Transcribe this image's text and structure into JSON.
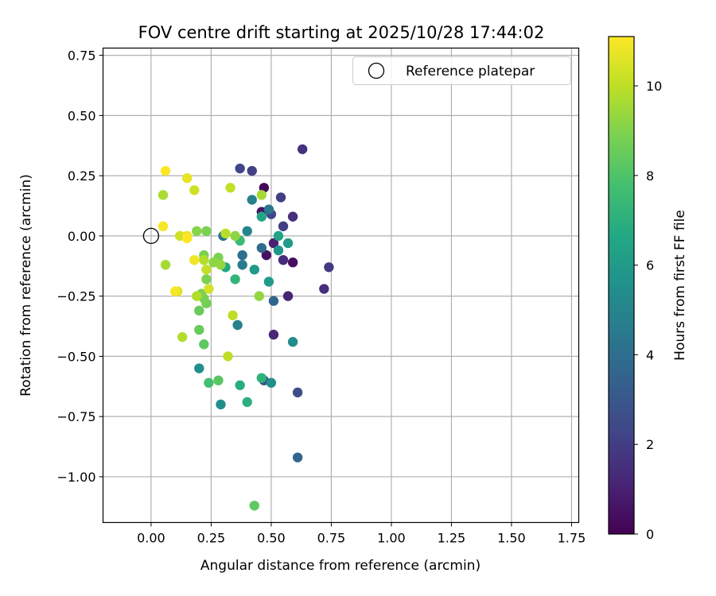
{
  "chart_data": {
    "type": "scatter",
    "title": "FOV centre drift starting at 2025/10/28 17:44:02",
    "xlabel": "Angular distance from reference (arcmin)",
    "ylabel": "Rotation from reference (arcmin)",
    "xlim": [
      -0.2,
      1.78
    ],
    "ylim": [
      -1.19,
      0.78
    ],
    "xticks": [
      0.0,
      0.25,
      0.5,
      0.75,
      1.0,
      1.25,
      1.5,
      1.75
    ],
    "xtick_labels": [
      "0.00",
      "0.25",
      "0.50",
      "0.75",
      "1.00",
      "1.25",
      "1.50",
      "1.75"
    ],
    "yticks": [
      0.75,
      0.5,
      0.25,
      0.0,
      -0.25,
      -0.5,
      -0.75,
      -1.0
    ],
    "ytick_labels": [
      "0.75",
      "0.50",
      "0.25",
      "0.00",
      "−0.25",
      "−0.50",
      "−0.75",
      "−1.00"
    ],
    "grid": true,
    "legend": {
      "position": "top-right",
      "entries": [
        {
          "label": "Reference platepar",
          "marker": "open-circle"
        }
      ]
    },
    "reference_point": {
      "x": 0.0,
      "y": 0.0
    },
    "colorbar": {
      "label": "Hours from first FF file",
      "min": 0,
      "max": 11.1,
      "ticks": [
        0,
        2,
        4,
        6,
        8,
        10
      ],
      "tick_labels": [
        "0",
        "2",
        "4",
        "6",
        "8",
        "10"
      ],
      "colormap": "viridis"
    },
    "points": [
      {
        "x": 0.47,
        "y": 0.2,
        "hours": 0.2
      },
      {
        "x": 0.46,
        "y": 0.1,
        "hours": 0.6
      },
      {
        "x": 0.48,
        "y": -0.08,
        "hours": 0.5
      },
      {
        "x": 0.59,
        "y": -0.11,
        "hours": 0.4
      },
      {
        "x": 0.51,
        "y": -0.03,
        "hours": 1.0
      },
      {
        "x": 0.57,
        "y": -0.25,
        "hours": 1.1
      },
      {
        "x": 0.63,
        "y": 0.36,
        "hours": 1.6
      },
      {
        "x": 0.55,
        "y": -0.1,
        "hours": 1.4
      },
      {
        "x": 0.51,
        "y": -0.41,
        "hours": 1.3
      },
      {
        "x": 0.72,
        "y": -0.22,
        "hours": 1.5
      },
      {
        "x": 0.74,
        "y": -0.13,
        "hours": 1.9
      },
      {
        "x": 0.59,
        "y": 0.08,
        "hours": 1.5
      },
      {
        "x": 0.54,
        "y": 0.16,
        "hours": 2.0
      },
      {
        "x": 0.42,
        "y": 0.27,
        "hours": 2.1
      },
      {
        "x": 0.37,
        "y": 0.28,
        "hours": 2.3
      },
      {
        "x": 0.5,
        "y": 0.09,
        "hours": 2.4
      },
      {
        "x": 0.55,
        "y": 0.04,
        "hours": 2.0
      },
      {
        "x": 0.47,
        "y": -0.6,
        "hours": 2.7
      },
      {
        "x": 0.61,
        "y": -0.65,
        "hours": 2.6
      },
      {
        "x": 0.61,
        "y": -0.92,
        "hours": 3.6
      },
      {
        "x": 0.51,
        "y": -0.27,
        "hours": 3.6
      },
      {
        "x": 0.46,
        "y": -0.05,
        "hours": 3.9
      },
      {
        "x": 0.38,
        "y": -0.08,
        "hours": 4.0
      },
      {
        "x": 0.3,
        "y": 0.0,
        "hours": 4.2
      },
      {
        "x": 0.49,
        "y": 0.11,
        "hours": 4.4
      },
      {
        "x": 0.38,
        "y": -0.12,
        "hours": 4.6
      },
      {
        "x": 0.36,
        "y": -0.37,
        "hours": 4.8
      },
      {
        "x": 0.42,
        "y": 0.15,
        "hours": 4.8
      },
      {
        "x": 0.4,
        "y": 0.02,
        "hours": 5.0
      },
      {
        "x": 0.2,
        "y": -0.55,
        "hours": 5.4
      },
      {
        "x": 0.29,
        "y": -0.7,
        "hours": 5.4
      },
      {
        "x": 0.59,
        "y": -0.44,
        "hours": 5.3
      },
      {
        "x": 0.5,
        "y": -0.61,
        "hours": 5.5
      },
      {
        "x": 0.53,
        "y": -0.06,
        "hours": 5.7
      },
      {
        "x": 0.43,
        "y": -0.14,
        "hours": 6.0
      },
      {
        "x": 0.49,
        "y": -0.19,
        "hours": 6.0
      },
      {
        "x": 0.57,
        "y": -0.03,
        "hours": 6.1
      },
      {
        "x": 0.53,
        "y": 0.0,
        "hours": 6.4
      },
      {
        "x": 0.46,
        "y": 0.08,
        "hours": 6.5
      },
      {
        "x": 0.31,
        "y": -0.13,
        "hours": 6.6
      },
      {
        "x": 0.37,
        "y": -0.62,
        "hours": 6.9
      },
      {
        "x": 0.4,
        "y": -0.69,
        "hours": 7.0
      },
      {
        "x": 0.46,
        "y": -0.59,
        "hours": 7.1
      },
      {
        "x": 0.35,
        "y": -0.18,
        "hours": 7.3
      },
      {
        "x": 0.37,
        "y": -0.02,
        "hours": 7.5
      },
      {
        "x": 0.24,
        "y": -0.61,
        "hours": 7.8
      },
      {
        "x": 0.28,
        "y": -0.6,
        "hours": 8.2
      },
      {
        "x": 0.43,
        "y": -1.12,
        "hours": 8.3
      },
      {
        "x": 0.22,
        "y": -0.45,
        "hours": 8.3
      },
      {
        "x": 0.2,
        "y": -0.39,
        "hours": 8.5
      },
      {
        "x": 0.2,
        "y": -0.31,
        "hours": 8.5
      },
      {
        "x": 0.23,
        "y": -0.28,
        "hours": 8.7
      },
      {
        "x": 0.22,
        "y": -0.26,
        "hours": 8.8
      },
      {
        "x": 0.21,
        "y": -0.24,
        "hours": 8.9
      },
      {
        "x": 0.23,
        "y": -0.18,
        "hours": 8.9
      },
      {
        "x": 0.22,
        "y": -0.08,
        "hours": 8.9
      },
      {
        "x": 0.28,
        "y": -0.09,
        "hours": 8.9
      },
      {
        "x": 0.23,
        "y": 0.02,
        "hours": 8.9
      },
      {
        "x": 0.19,
        "y": 0.02,
        "hours": 9.1
      },
      {
        "x": 0.35,
        "y": 0.0,
        "hours": 9.2
      },
      {
        "x": 0.26,
        "y": -0.11,
        "hours": 9.2
      },
      {
        "x": 0.29,
        "y": -0.12,
        "hours": 9.3
      },
      {
        "x": 0.45,
        "y": -0.25,
        "hours": 9.3
      },
      {
        "x": 0.46,
        "y": 0.17,
        "hours": 9.6
      },
      {
        "x": 0.06,
        "y": -0.12,
        "hours": 9.6
      },
      {
        "x": 0.05,
        "y": 0.17,
        "hours": 9.7
      },
      {
        "x": 0.13,
        "y": -0.42,
        "hours": 9.8
      },
      {
        "x": 0.19,
        "y": -0.25,
        "hours": 9.8
      },
      {
        "x": 0.22,
        "y": -0.1,
        "hours": 9.8
      },
      {
        "x": 0.31,
        "y": 0.01,
        "hours": 9.9
      },
      {
        "x": 0.34,
        "y": -0.33,
        "hours": 10.0
      },
      {
        "x": 0.32,
        "y": -0.5,
        "hours": 10.0
      },
      {
        "x": 0.23,
        "y": -0.14,
        "hours": 10.1
      },
      {
        "x": 0.33,
        "y": 0.2,
        "hours": 10.1
      },
      {
        "x": 0.18,
        "y": 0.19,
        "hours": 10.3
      },
      {
        "x": 0.12,
        "y": 0.0,
        "hours": 10.3
      },
      {
        "x": 0.24,
        "y": -0.22,
        "hours": 10.4
      },
      {
        "x": 0.11,
        "y": -0.23,
        "hours": 10.5
      },
      {
        "x": 0.15,
        "y": 0.24,
        "hours": 10.7
      },
      {
        "x": 0.15,
        "y": 0.0,
        "hours": 10.8
      },
      {
        "x": 0.18,
        "y": -0.1,
        "hours": 10.9
      },
      {
        "x": 0.1,
        "y": -0.23,
        "hours": 11.0
      },
      {
        "x": 0.05,
        "y": 0.04,
        "hours": 11.0
      },
      {
        "x": 0.06,
        "y": 0.27,
        "hours": 11.1
      },
      {
        "x": 0.15,
        "y": -0.01,
        "hours": 11.1
      }
    ]
  }
}
